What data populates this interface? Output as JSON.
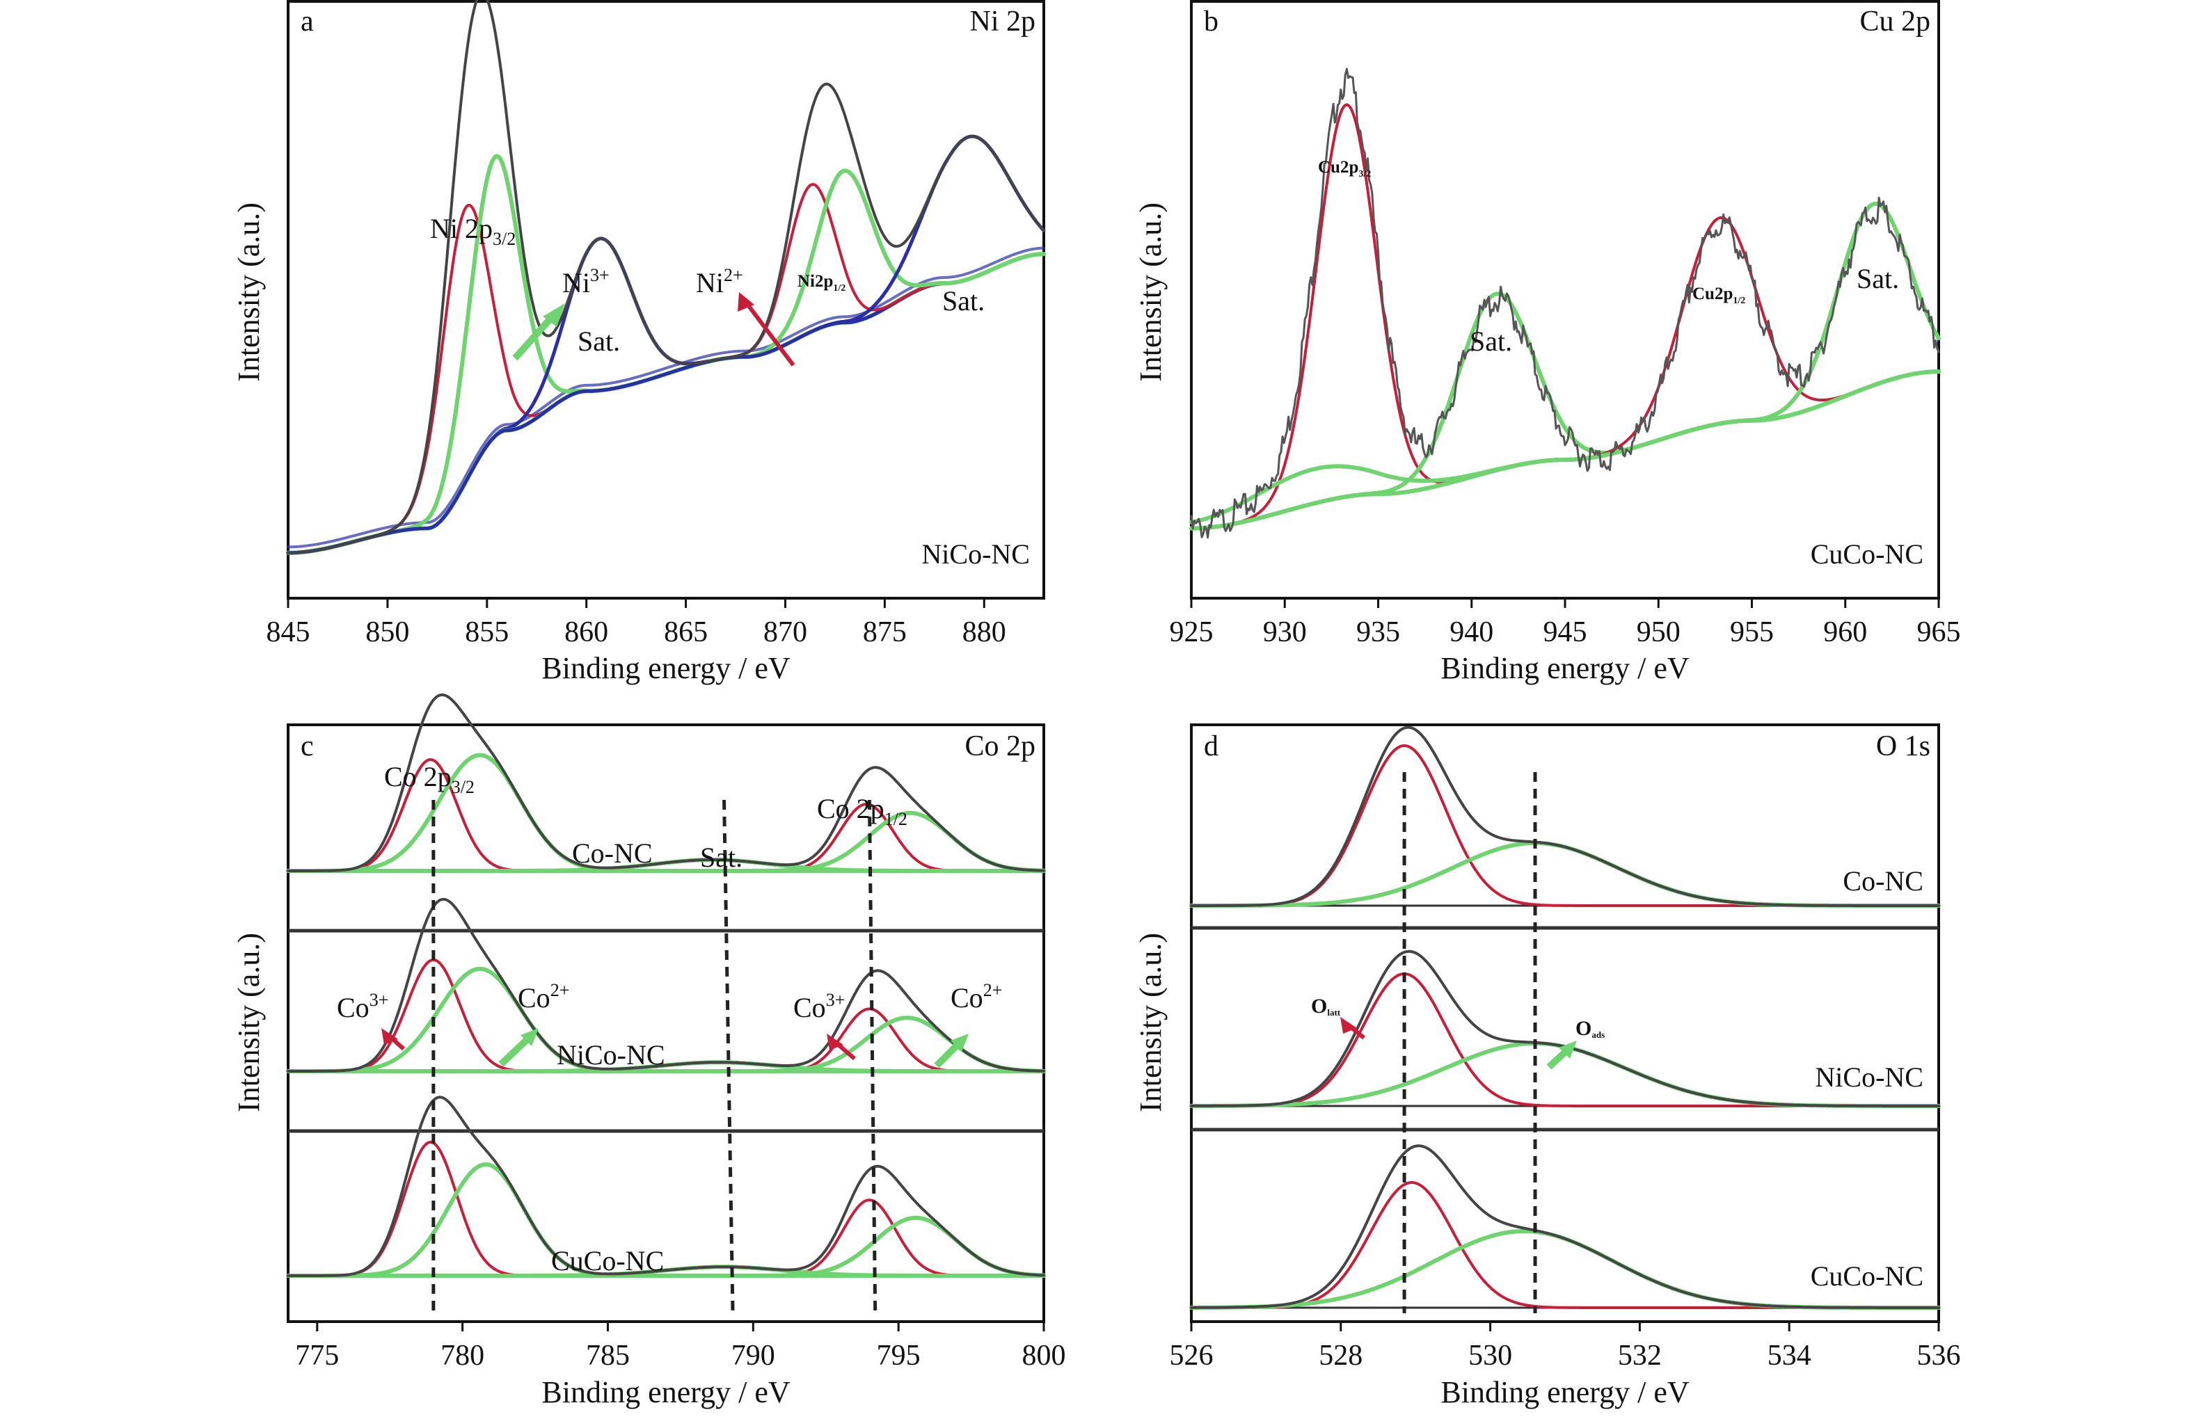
{
  "chart_data": [
    {
      "panel": "a",
      "type": "line",
      "title": "Ni 2p",
      "sample": "NiCo-NC",
      "xlabel": "Binding energy / eV",
      "ylabel": "Intensity (a.u.)",
      "xlim": [
        845,
        883
      ],
      "ylim": [
        0,
        1.15
      ],
      "xticks": [
        845,
        850,
        855,
        860,
        865,
        870,
        875,
        880
      ],
      "grid": false,
      "peaks": [
        {
          "name": "Ni3+ 2p3/2",
          "center": 853.9,
          "amp": 0.56,
          "width": 1.2,
          "color": "red"
        },
        {
          "name": "Ni2+ 2p3/2",
          "center": 855.4,
          "amp": 0.57,
          "width": 1.3,
          "color": "green"
        },
        {
          "name": "Sat.",
          "center": 860.7,
          "amp": 0.31,
          "width": 1.6,
          "color": "blue"
        },
        {
          "name": "Ni3+ 2p1/2",
          "center": 871.3,
          "amp": 0.3,
          "width": 1.2,
          "color": "red"
        },
        {
          "name": "Ni2+ 2p1/2",
          "center": 873.0,
          "amp": 0.31,
          "width": 1.4,
          "color": "green"
        },
        {
          "name": "Sat.",
          "center": 879.2,
          "amp": 0.29,
          "width": 2.0,
          "color": "blue"
        }
      ],
      "background": {
        "type": "step",
        "points": [
          [
            845,
            0.05
          ],
          [
            852,
            0.1
          ],
          [
            856,
            0.3
          ],
          [
            860,
            0.38
          ],
          [
            868,
            0.45
          ],
          [
            873,
            0.52
          ],
          [
            878,
            0.6
          ],
          [
            883,
            0.66
          ]
        ]
      },
      "annotations": [
        {
          "text": "Ni 2p3/2",
          "x": 855.0,
          "y": 1.08
        },
        {
          "text": "Ni3+",
          "x": 859.0,
          "y": 0.86
        },
        {
          "text": "Sat.",
          "x": 860.8,
          "y": 0.69
        },
        {
          "text": "Ni2+",
          "x": 869.5,
          "y": 0.86
        },
        {
          "text": "Ni2p1/2",
          "x": 872.5,
          "y": 0.87
        },
        {
          "text": "Sat.",
          "x": 878.7,
          "y": 0.8
        }
      ]
    },
    {
      "panel": "b",
      "type": "line",
      "title": "Cu 2p",
      "sample": "CuCo-NC",
      "xlabel": "Binding energy / eV",
      "ylabel": "Intensity (a.u.)",
      "xlim": [
        925,
        965
      ],
      "ylim": [
        0,
        1.15
      ],
      "xticks": [
        925,
        930,
        935,
        940,
        945,
        950,
        955,
        960,
        965
      ],
      "grid": false,
      "peaks": [
        {
          "name": "Cu2p3/2",
          "center": 933.3,
          "amp": 0.8,
          "width": 1.6,
          "color": "red"
        },
        {
          "name": "Sat.",
          "center": 941.3,
          "amp": 0.36,
          "width": 2.0,
          "color": "green"
        },
        {
          "name": "Cu2p1/2",
          "center": 953.3,
          "amp": 0.42,
          "width": 2.0,
          "color": "red"
        },
        {
          "name": "Sat.",
          "center": 961.5,
          "amp": 0.37,
          "width": 1.9,
          "color": "green"
        },
        {
          "name": "Sat.",
          "center": 931.5,
          "amp": 0.07,
          "width": 3.5,
          "color": "green"
        }
      ],
      "background": {
        "type": "linear",
        "points": [
          [
            925,
            0.1
          ],
          [
            935,
            0.17
          ],
          [
            945,
            0.24
          ],
          [
            955,
            0.32
          ],
          [
            965,
            0.42
          ]
        ]
      },
      "annotations": [
        {
          "text": "Cu2p3/2",
          "x": 933.3,
          "y": 1.03
        },
        {
          "text": "Sat.",
          "x": 941.0,
          "y": 0.64
        },
        {
          "text": "Cu2p1/2",
          "x": 953.3,
          "y": 0.77
        },
        {
          "text": "Sat.",
          "x": 961.5,
          "y": 0.83
        }
      ]
    },
    {
      "panel": "c",
      "type": "line",
      "title": "Co 2p",
      "xlabel": "Binding energy / eV",
      "ylabel": "Intensity (a.u.)",
      "xlim": [
        774,
        800
      ],
      "ylim": [
        0,
        1
      ],
      "xticks": [
        775,
        780,
        785,
        790,
        795,
        800
      ],
      "grid": false,
      "guides_x": [
        [
          779.0,
          779.0
        ],
        [
          789.0,
          789.3
        ],
        [
          794.0,
          794.2
        ]
      ],
      "series": [
        {
          "name": "Co-NC",
          "peaks": [
            {
              "name": "Co3+ 2p3/2",
              "center": 778.9,
              "amp": 0.25,
              "width": 0.9,
              "color": "red"
            },
            {
              "name": "Co2+ 2p3/2",
              "center": 780.6,
              "amp": 0.26,
              "width": 1.4,
              "color": "green"
            },
            {
              "name": "Co3+ 2p1/2",
              "center": 793.9,
              "amp": 0.15,
              "width": 0.9,
              "color": "red"
            },
            {
              "name": "Co2+ 2p1/2",
              "center": 795.4,
              "amp": 0.13,
              "width": 1.4,
              "color": "green"
            },
            {
              "name": "Sat.",
              "center": 788.6,
              "amp": 0.025,
              "width": 2.0,
              "color": "green"
            }
          ]
        },
        {
          "name": "NiCo-NC",
          "peaks": [
            {
              "name": "Co3+ 2p3/2",
              "center": 779.0,
              "amp": 0.25,
              "width": 0.9,
              "color": "red"
            },
            {
              "name": "Co2+ 2p3/2",
              "center": 780.6,
              "amp": 0.23,
              "width": 1.4,
              "color": "green"
            },
            {
              "name": "Co3+ 2p1/2",
              "center": 794.0,
              "amp": 0.14,
              "width": 0.9,
              "color": "red"
            },
            {
              "name": "Co2+ 2p1/2",
              "center": 795.3,
              "amp": 0.12,
              "width": 1.4,
              "color": "green"
            },
            {
              "name": "Sat.",
              "center": 788.8,
              "amp": 0.02,
              "width": 2.0,
              "color": "green"
            }
          ]
        },
        {
          "name": "CuCo-NC",
          "peaks": [
            {
              "name": "Co3+ 2p3/2",
              "center": 778.9,
              "amp": 0.3,
              "width": 0.9,
              "color": "red"
            },
            {
              "name": "Co2+ 2p3/2",
              "center": 780.8,
              "amp": 0.25,
              "width": 1.3,
              "color": "green"
            },
            {
              "name": "Co3+ 2p1/2",
              "center": 794.0,
              "amp": 0.17,
              "width": 0.9,
              "color": "red"
            },
            {
              "name": "Co2+ 2p1/2",
              "center": 795.6,
              "amp": 0.13,
              "width": 1.4,
              "color": "green"
            },
            {
              "name": "Sat.",
              "center": 789.0,
              "amp": 0.02,
              "width": 2.0,
              "color": "green"
            }
          ]
        }
      ],
      "annotations": [
        {
          "text": "Co 2p3/2",
          "x": 779.5,
          "y": 0.975
        },
        {
          "text": "Co-NC",
          "x": 785.4,
          "y": 0.875
        },
        {
          "text": "Sat.",
          "x": 789.2,
          "y": 0.87
        },
        {
          "text": "Co 2p1/2",
          "x": 794.0,
          "y": 0.94
        },
        {
          "text": "Co3+",
          "x": 776.6,
          "y": 0.59
        },
        {
          "text": "Co2+",
          "x": 783.0,
          "y": 0.6
        },
        {
          "text": "Co3+",
          "x": 792.5,
          "y": 0.59
        },
        {
          "text": "Co2+",
          "x": 798.1,
          "y": 0.6
        },
        {
          "text": "NiCo-NC",
          "x": 785.9,
          "y": 0.48
        },
        {
          "text": "CuCo-NC",
          "x": 785.9,
          "y": 0.095
        }
      ]
    },
    {
      "panel": "d",
      "type": "line",
      "title": "O 1s",
      "xlabel": "Binding energy / eV",
      "ylabel": "Intensity (a.u.)",
      "xlim": [
        526,
        536
      ],
      "ylim": [
        0,
        1
      ],
      "xticks": [
        526,
        528,
        530,
        532,
        534,
        536
      ],
      "grid": false,
      "guides_x": [
        528.85,
        530.6
      ],
      "series": [
        {
          "name": "Co-NC",
          "peaks": [
            {
              "name": "O latt",
              "center": 528.85,
              "amp": 0.23,
              "width": 0.55,
              "color": "red"
            },
            {
              "name": "O ads",
              "center": 530.6,
              "amp": 0.09,
              "width": 1.1,
              "color": "green"
            }
          ]
        },
        {
          "name": "NiCo-NC",
          "peaks": [
            {
              "name": "O latt",
              "center": 528.85,
              "amp": 0.19,
              "width": 0.55,
              "color": "red"
            },
            {
              "name": "O ads",
              "center": 530.6,
              "amp": 0.09,
              "width": 1.2,
              "color": "green"
            }
          ]
        },
        {
          "name": "CuCo-NC",
          "peaks": [
            {
              "name": "O latt",
              "center": 528.95,
              "amp": 0.18,
              "width": 0.55,
              "color": "red"
            },
            {
              "name": "O ads",
              "center": 530.45,
              "amp": 0.11,
              "width": 1.2,
              "color": "green"
            }
          ]
        }
      ],
      "annotations": [
        {
          "text": "Olatt",
          "x": 527.9,
          "y": 0.55
        },
        {
          "text": "Oads",
          "x": 531.2,
          "y": 0.53
        },
        {
          "text": "Co-NC",
          "x": 535.4,
          "y": 0.8
        },
        {
          "text": "NiCo-NC",
          "x": 535.4,
          "y": 0.43
        },
        {
          "text": "CuCo-NC",
          "x": 535.4,
          "y": 0.07
        }
      ]
    }
  ],
  "labels": {
    "a": {
      "letter": "a",
      "title": "Ni 2p",
      "sample": "NiCo-NC",
      "peak1_main": "Ni 2p",
      "peak1_sub": "3/2",
      "ni3_main": "Ni",
      "ni3_sup": "3+",
      "sat1": "Sat.",
      "ni2_main": "Ni",
      "ni2_sup": "2+",
      "peak2_main": "Ni2p",
      "peak2_sub": "1/2",
      "sat2": "Sat."
    },
    "b": {
      "letter": "b",
      "title": "Cu 2p",
      "sample": "CuCo-NC",
      "peak1_main": "Cu2p",
      "peak1_sub": "3/2",
      "sat1": "Sat.",
      "peak2_main": "Cu2p",
      "peak2_sub": "1/2",
      "sat2": "Sat."
    },
    "c": {
      "letter": "c",
      "title": "Co 2p",
      "p32_main": "Co 2p",
      "p32_sub": "3/2",
      "p12_main": "Co 2p",
      "p12_sub": "1/2",
      "sat": "Sat.",
      "co3_main": "Co",
      "co3_sup": "3+",
      "co2_main": "Co",
      "co2_sup": "2+",
      "s1": "Co-NC",
      "s2": "NiCo-NC",
      "s3": "CuCo-NC"
    },
    "d": {
      "letter": "d",
      "title": "O 1s",
      "olatt_main": "O",
      "olatt_sub": "latt",
      "oads_main": "O",
      "oads_sub": "ads",
      "s1": "Co-NC",
      "s2": "NiCo-NC",
      "s3": "CuCo-NC"
    },
    "xlabel": "Binding energy / eV",
    "ylabel": "Intensity (a.u.)"
  },
  "colors": {
    "envelope": "#444444",
    "component_red": "#c81e3a",
    "component_green": "#6fd36f",
    "component_blue": "#2a2fa8",
    "guides": "#222222"
  }
}
